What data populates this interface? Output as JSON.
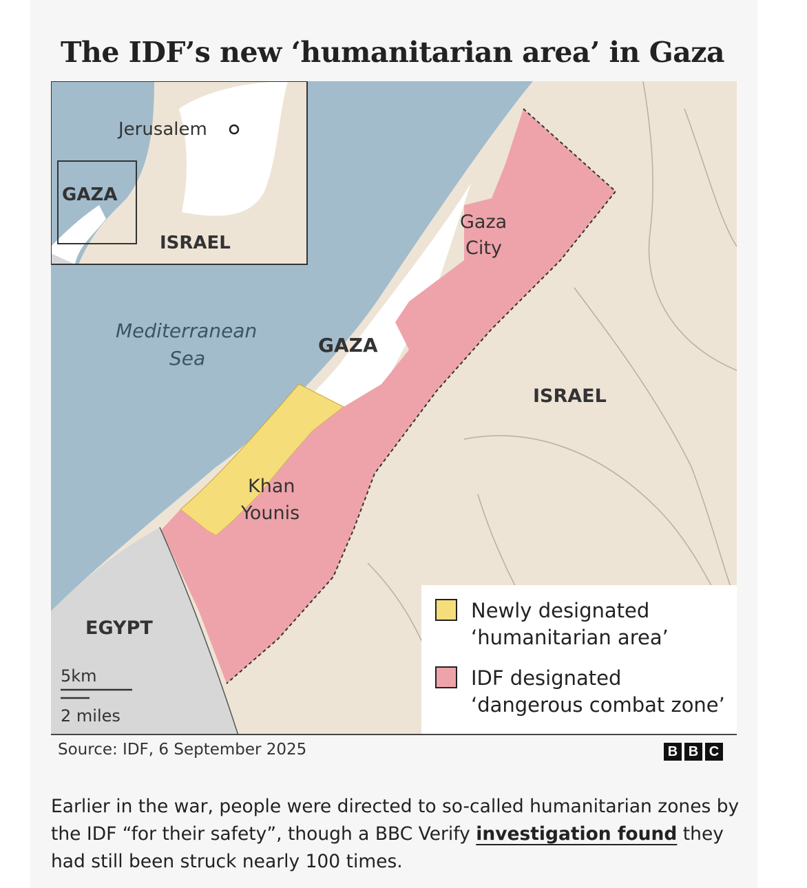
{
  "title": "The IDF’s new ‘humanitarian area’ in Gaza",
  "map": {
    "labels": {
      "gaza_city_line1": "Gaza",
      "gaza_city_line2": "City",
      "gaza": "GAZA",
      "israel": "ISRAEL",
      "sea_line1": "Mediterranean",
      "sea_line2": "Sea",
      "khan_younis_line1": "Khan",
      "khan_younis_line2": "Younis",
      "egypt": "EGYPT"
    },
    "inset": {
      "jerusalem": "Jerusalem",
      "gaza": "GAZA",
      "israel": "ISRAEL"
    },
    "scale": {
      "km": "5km",
      "miles": "2 miles"
    },
    "colors": {
      "sea": "#a2bccc",
      "land": "#eee4d6",
      "egypt": "#d7d7d7",
      "gaza_strip": "#ffffff",
      "humanitarian_area": "#f5dd7a",
      "combat_zone": "#eea3aa",
      "border": "#333333"
    }
  },
  "legend": [
    {
      "line1": "Newly designated",
      "line2": "‘humanitarian area’",
      "color": "#f5dd7a"
    },
    {
      "line1": "IDF designated",
      "line2": "‘dangerous combat zone’",
      "color": "#eea3aa"
    }
  ],
  "source": "Source: IDF, 6 September 2025",
  "branding": [
    "B",
    "B",
    "C"
  ],
  "caption": {
    "before": "Earlier in the war, people were directed to so-called humanitarian zones by the IDF “for their safety”, though a BBC Verify ",
    "link": "investigation found",
    "after": " they had still been struck nearly 100 times."
  }
}
